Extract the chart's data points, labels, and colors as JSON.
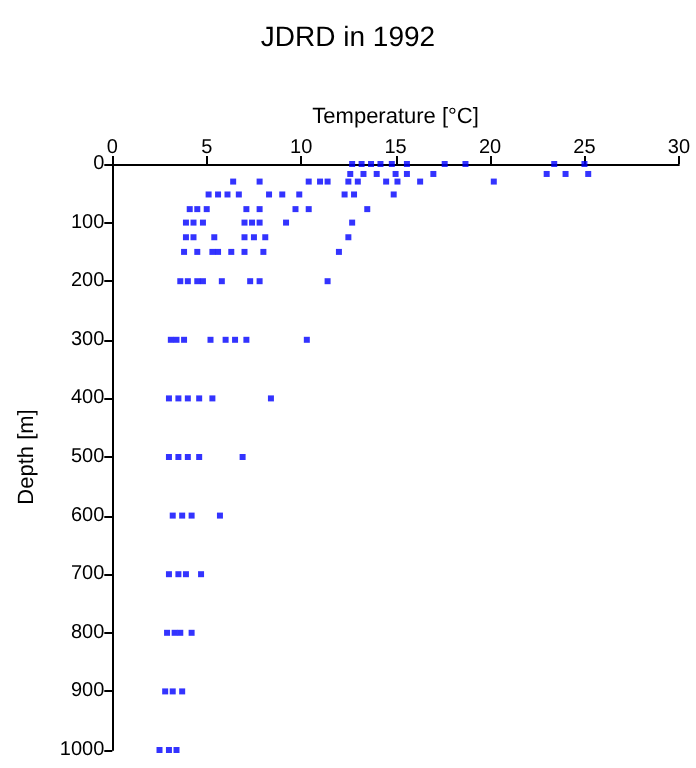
{
  "chart_data": {
    "type": "scatter",
    "title": "JDRD in 1992",
    "xlabel": "Temperature [°C]",
    "ylabel": "Depth [m]",
    "x": [
      12.7,
      13.2,
      13.7,
      14.2,
      14.8,
      15.6,
      17.6,
      18.7,
      23.4,
      25.0,
      12.6,
      13.3,
      14.0,
      15.0,
      15.6,
      17.0,
      23.0,
      24.0,
      25.2,
      6.4,
      7.8,
      10.4,
      11.0,
      11.4,
      12.5,
      13.0,
      14.5,
      15.1,
      16.3,
      20.2,
      5.1,
      5.6,
      6.1,
      6.7,
      8.3,
      9.0,
      9.9,
      12.3,
      12.8,
      14.9,
      4.1,
      4.5,
      5.0,
      7.1,
      7.8,
      9.7,
      10.4,
      13.5,
      3.9,
      4.3,
      4.8,
      7.0,
      7.4,
      7.8,
      9.2,
      12.7,
      3.9,
      4.3,
      5.4,
      7.0,
      7.5,
      8.1,
      12.5,
      3.8,
      4.5,
      5.3,
      5.6,
      6.3,
      7.0,
      8.0,
      12.0,
      3.6,
      4.0,
      4.5,
      4.8,
      5.8,
      7.3,
      7.8,
      11.4,
      3.1,
      3.4,
      3.8,
      5.2,
      6.0,
      6.5,
      7.1,
      10.3,
      3.0,
      3.5,
      4.0,
      4.6,
      5.3,
      8.4,
      3.0,
      3.5,
      4.0,
      4.6,
      6.9,
      3.2,
      3.7,
      4.2,
      5.7,
      3.0,
      3.5,
      3.9,
      4.7,
      2.9,
      3.3,
      3.6,
      4.2,
      2.8,
      3.2,
      3.7,
      2.5,
      3.0,
      3.4
    ],
    "values": [
      0,
      0,
      0,
      0,
      0,
      0,
      0,
      0,
      0,
      0,
      17,
      17,
      17,
      17,
      17,
      17,
      17,
      17,
      17,
      30,
      30,
      30,
      30,
      30,
      30,
      30,
      30,
      30,
      30,
      30,
      52,
      52,
      52,
      52,
      52,
      52,
      52,
      52,
      52,
      52,
      77,
      77,
      77,
      77,
      77,
      77,
      77,
      77,
      100,
      100,
      100,
      100,
      100,
      100,
      100,
      100,
      125,
      125,
      125,
      125,
      125,
      125,
      125,
      150,
      150,
      150,
      150,
      150,
      150,
      150,
      150,
      200,
      200,
      200,
      200,
      200,
      200,
      200,
      200,
      300,
      300,
      300,
      300,
      300,
      300,
      300,
      300,
      400,
      400,
      400,
      400,
      400,
      400,
      500,
      500,
      500,
      500,
      500,
      600,
      600,
      600,
      600,
      700,
      700,
      700,
      700,
      800,
      800,
      800,
      800,
      900,
      900,
      900,
      1000,
      1000,
      1000
    ],
    "color": "#0000ff",
    "marker": "square",
    "xlim": [
      0,
      30
    ],
    "xticks": [
      0,
      5,
      10,
      15,
      20,
      25,
      30
    ],
    "ylim": [
      1000,
      0
    ],
    "yticks": [
      0,
      100,
      200,
      300,
      400,
      500,
      600,
      700,
      800,
      900,
      1000
    ],
    "grid": false
  }
}
